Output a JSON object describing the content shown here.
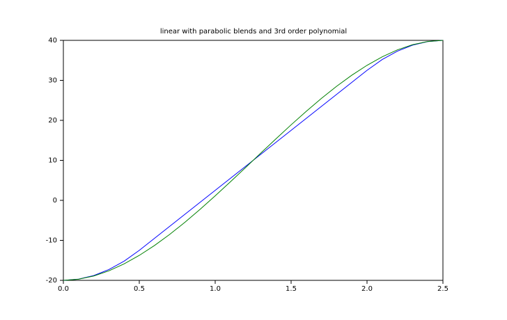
{
  "chart_data": {
    "type": "line",
    "title": "linear with parabolic blends and 3rd order polynomial",
    "x": [
      0,
      0.1,
      0.2,
      0.3,
      0.4,
      0.5,
      0.6,
      0.7,
      0.8,
      0.9,
      1.0,
      1.1,
      1.2,
      1.3,
      1.4,
      1.5,
      1.6,
      1.7,
      1.8,
      1.9,
      2.0,
      2.1,
      2.2,
      2.3,
      2.4,
      2.5
    ],
    "series": [
      {
        "color": "#0000ff",
        "values": [
          -20,
          -19.7,
          -18.8,
          -17.3,
          -15.2,
          -12.5,
          -9.5,
          -6.5,
          -3.5,
          -0.5,
          2.5,
          5.5,
          8.5,
          11.5,
          14.5,
          17.5,
          20.5,
          23.5,
          26.5,
          29.5,
          32.5,
          35.2,
          37.3,
          38.8,
          39.7,
          40
        ]
      },
      {
        "color": "#008000",
        "values": [
          -20,
          -19.72,
          -18.91,
          -17.62,
          -15.88,
          -13.76,
          -11.29,
          -8.52,
          -5.5,
          -2.27,
          1.12,
          4.63,
          8.2,
          11.8,
          15.37,
          18.88,
          22.27,
          25.5,
          28.52,
          31.29,
          33.76,
          35.88,
          37.62,
          38.91,
          39.72,
          40
        ]
      }
    ],
    "xlim": [
      0,
      2.5
    ],
    "ylim": [
      -20,
      40
    ],
    "xticks": [
      {
        "value": 0,
        "label": "0.0"
      },
      0.5,
      {
        "value": 1,
        "label": "1.0"
      },
      1.5,
      {
        "value": 2,
        "label": "2.0"
      },
      2.5
    ],
    "yticks": [
      -20,
      -10,
      0,
      10,
      20,
      30,
      40
    ]
  }
}
